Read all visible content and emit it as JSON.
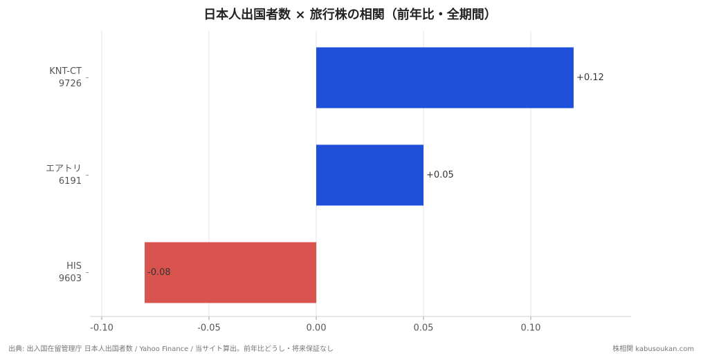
{
  "chart_data": {
    "type": "barh",
    "title": "日本人出国者数 × 旅行株の相関（前年比・全期間）",
    "categories": [
      [
        "KNT-CT",
        "9726"
      ],
      [
        "エアトリ",
        "6191"
      ],
      [
        "HIS",
        "9603"
      ]
    ],
    "values": [
      0.12,
      0.05,
      -0.08
    ],
    "value_labels": [
      "+0.12",
      "+0.05",
      "-0.08"
    ],
    "colors": [
      "#1f4fd8",
      "#1f4fd8",
      "#d9534f"
    ],
    "xlim": [
      -0.1055,
      0.1468
    ],
    "xticks": [
      {
        "value": -0.1,
        "label": "-0.10"
      },
      -0.05,
      {
        "value": 0,
        "label": "0.00"
      },
      0.05,
      {
        "value": 0.1,
        "label": "0.10"
      }
    ],
    "grid": true,
    "source": "出典: 出入国在留管理庁 日本人出国者数 / Yahoo Finance / 当サイト算出。前年比どうし・将来保証なし",
    "brand": "株相関 kabusoukan.com"
  }
}
